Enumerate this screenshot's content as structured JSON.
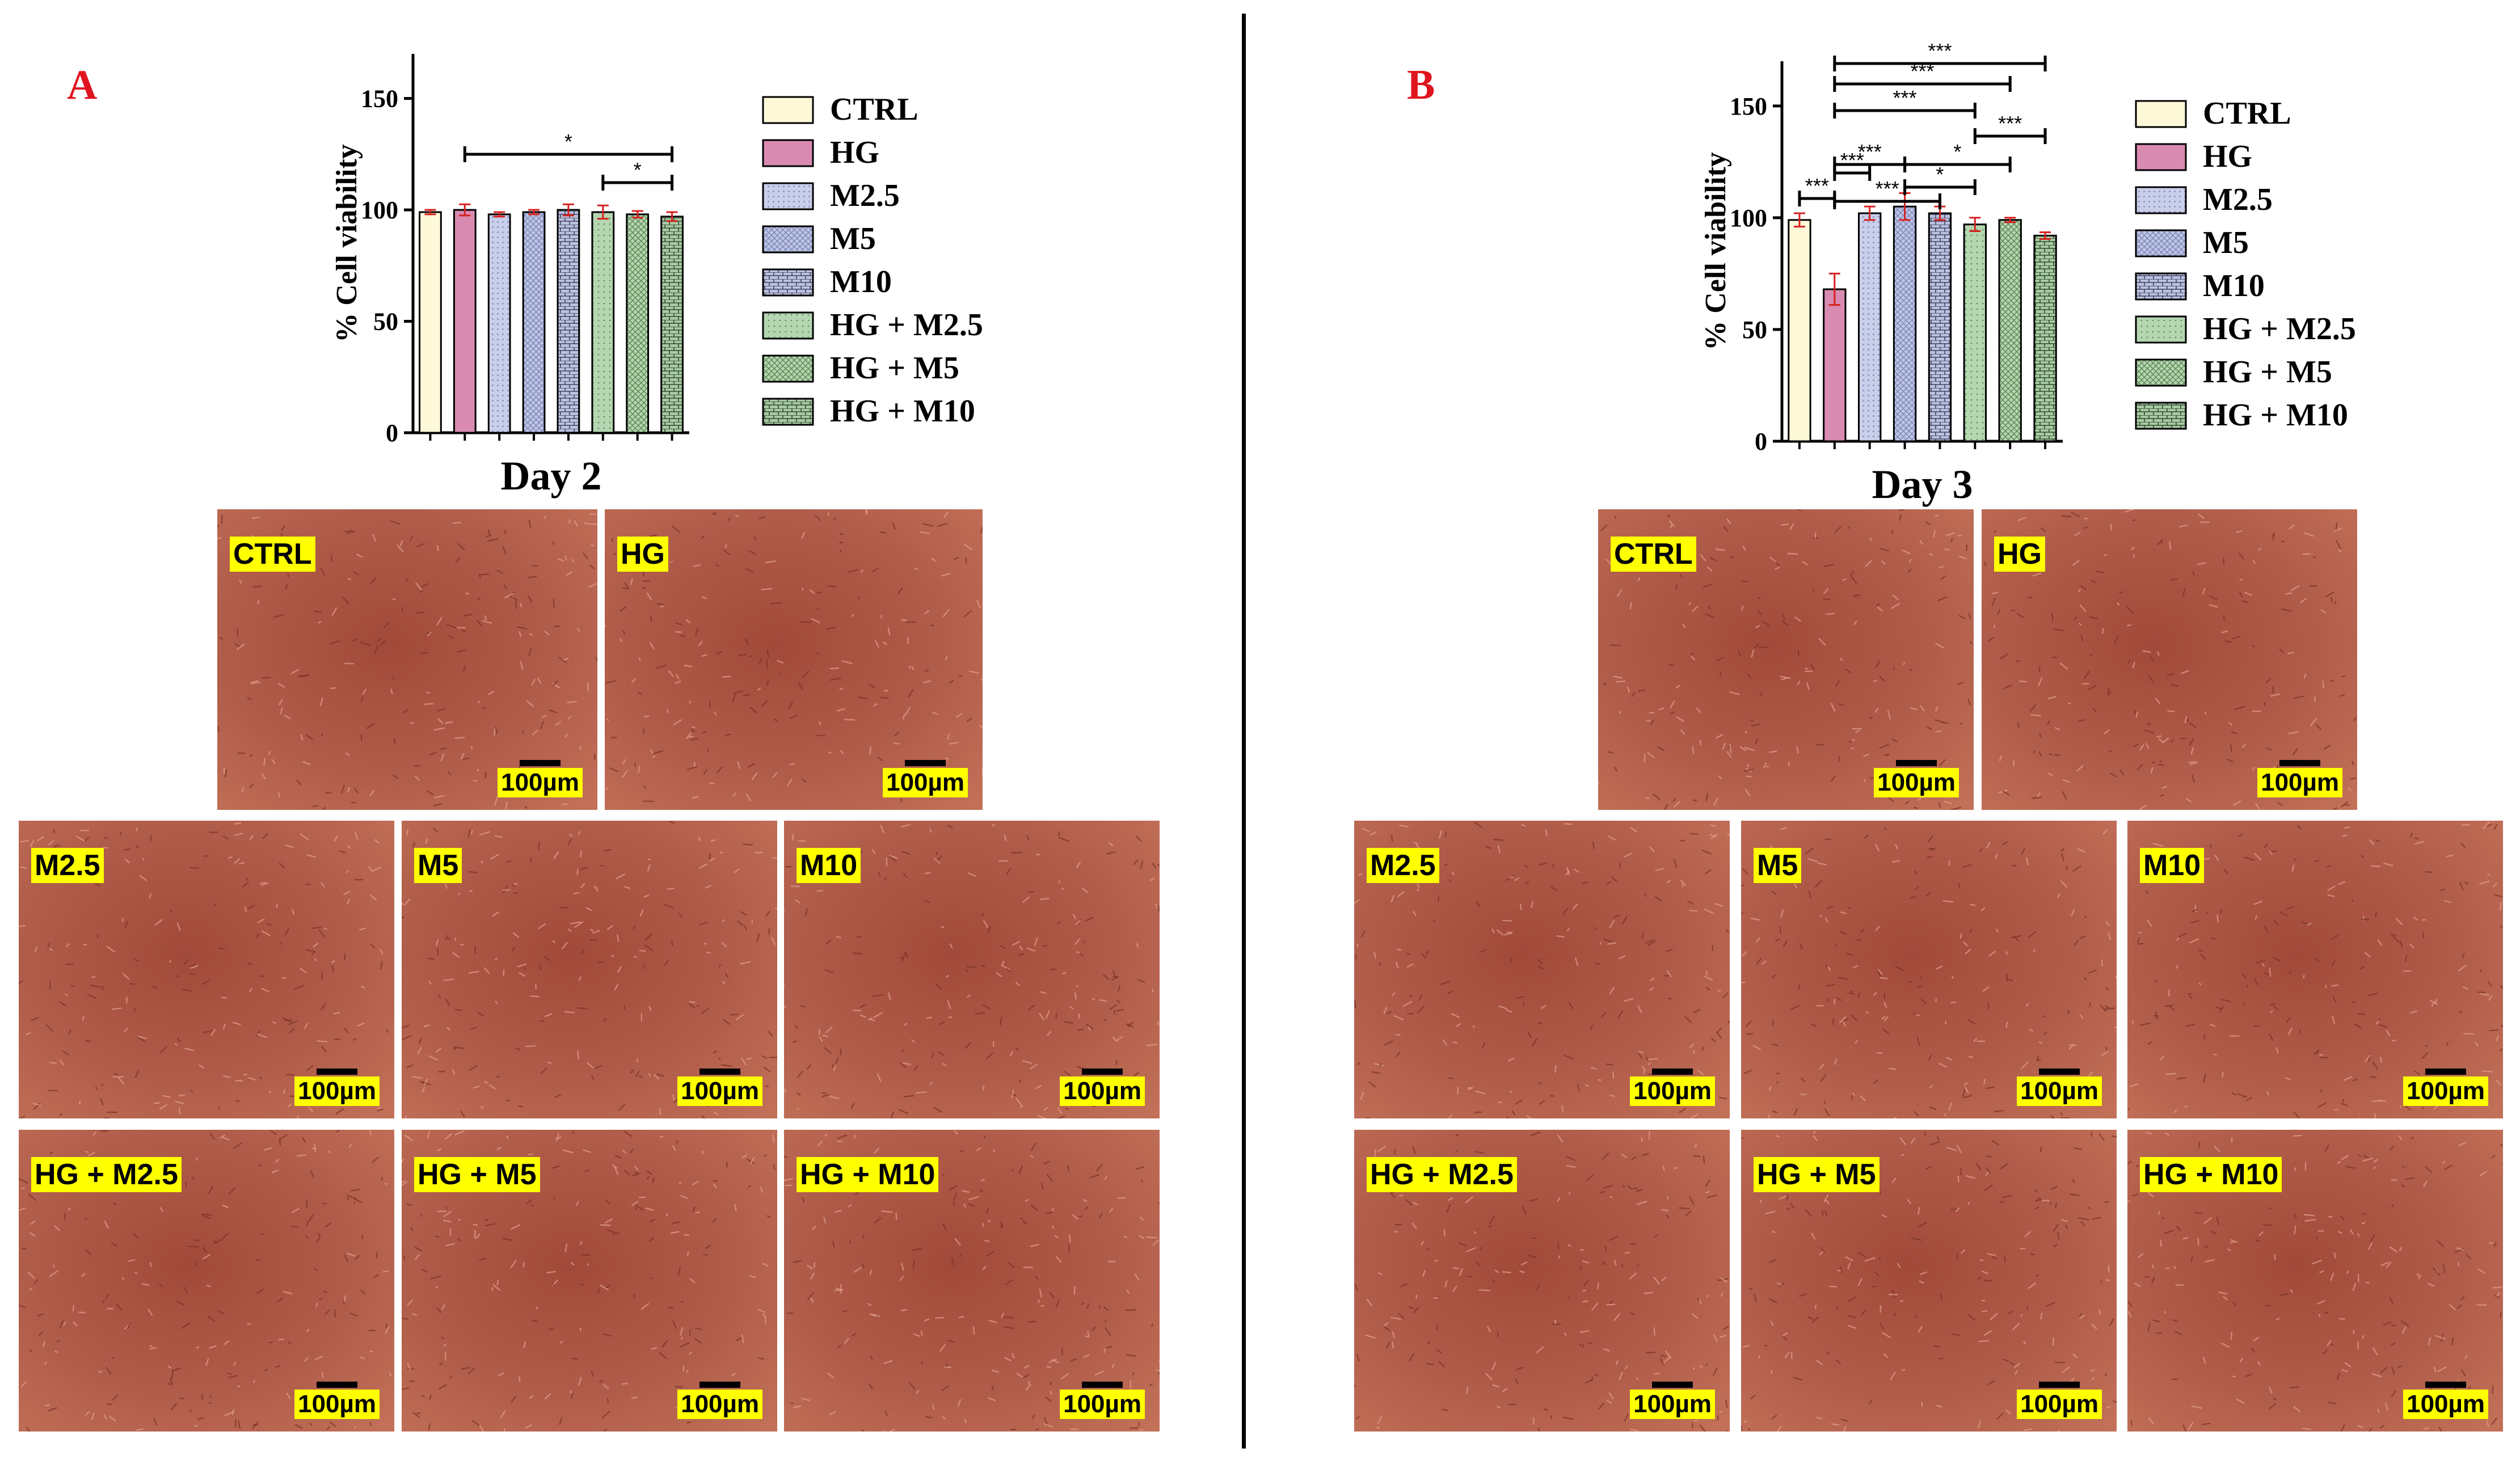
{
  "panels": {
    "a": {
      "letter": "A",
      "chart_title": "Day 2",
      "ylabel": "% Cell viability",
      "tiles": [
        {
          "label": "CTRL",
          "scale": "100µm"
        },
        {
          "label": "HG",
          "scale": "100µm"
        },
        {
          "label": "M2.5",
          "scale": "100µm"
        },
        {
          "label": "M5",
          "scale": "100µm"
        },
        {
          "label": "M10",
          "scale": "100µm"
        },
        {
          "label": "HG + M2.5",
          "scale": "100µm"
        },
        {
          "label": "HG + M5",
          "scale": "100µm"
        },
        {
          "label": "HG + M10",
          "scale": "100µm"
        }
      ]
    },
    "b": {
      "letter": "B",
      "chart_title": "Day 3",
      "ylabel": "% Cell viability",
      "tiles": [
        {
          "label": "CTRL",
          "scale": "100µm"
        },
        {
          "label": "HG",
          "scale": "100µm"
        },
        {
          "label": "M2.5",
          "scale": "100µm"
        },
        {
          "label": "M5",
          "scale": "100µm"
        },
        {
          "label": "M10",
          "scale": "100µm"
        },
        {
          "label": "HG + M2.5",
          "scale": "100µm"
        },
        {
          "label": "HG + M5",
          "scale": "100µm"
        },
        {
          "label": "HG + M10",
          "scale": "100µm"
        }
      ]
    }
  },
  "colors": {
    "CTRL": "#fdf8d8",
    "HG": "#d98ab0",
    "M2.5": "#c9cfea",
    "M5": "#bec5e6",
    "M10": "#bcc2dc",
    "HG + M2.5": "#b4d6b1",
    "HG + M5": "#b5d5ae",
    "HG + M10": "#a9c9a3",
    "error": "#d62020",
    "label_bg": "#ffff00",
    "letter": "#e0141e"
  },
  "chart_data": [
    {
      "type": "bar",
      "title": "Day 2",
      "xlabel": "",
      "ylabel": "% Cell viability",
      "ylim": [
        0,
        170
      ],
      "yticks": [
        0,
        50,
        100,
        150
      ],
      "categories": [
        "CTRL",
        "HG",
        "M2.5",
        "M5",
        "M10",
        "HG + M2.5",
        "HG + M5",
        "HG + M10"
      ],
      "values": [
        99,
        100,
        98,
        99,
        100,
        99,
        98,
        97
      ],
      "errors": [
        1,
        2.5,
        1,
        1,
        2.5,
        3,
        1.5,
        2
      ],
      "legend": [
        "CTRL",
        "HG",
        "M2.5",
        "M5",
        "M10",
        "HG + M2.5",
        "HG + M5",
        "HG + M10"
      ],
      "legend_position": "right",
      "significance": [
        {
          "from": "HG",
          "to": "HG + M10",
          "label": "*"
        },
        {
          "from": "HG + M2.5",
          "to": "HG + M10",
          "label": "*"
        }
      ]
    },
    {
      "type": "bar",
      "title": "Day 3",
      "xlabel": "",
      "ylabel": "% Cell viability",
      "ylim": [
        0,
        170
      ],
      "yticks": [
        0,
        50,
        100,
        150
      ],
      "categories": [
        "CTRL",
        "HG",
        "M2.5",
        "M5",
        "M10",
        "HG + M2.5",
        "HG + M5",
        "HG + M10"
      ],
      "values": [
        99,
        68,
        102,
        105,
        102,
        97,
        99,
        92
      ],
      "errors": [
        3,
        7,
        3,
        6,
        3,
        3,
        1,
        1.5
      ],
      "legend": [
        "CTRL",
        "HG",
        "M2.5",
        "M5",
        "M10",
        "HG + M2.5",
        "HG + M5",
        "HG + M10"
      ],
      "legend_position": "right",
      "significance": [
        {
          "from": "CTRL",
          "to": "HG",
          "label": "***"
        },
        {
          "from": "HG",
          "to": "M2.5",
          "label": "***"
        },
        {
          "from": "HG",
          "to": "M5",
          "label": "***"
        },
        {
          "from": "M5",
          "to": "HG + M5",
          "label": "*"
        },
        {
          "from": "M5",
          "to": "HG + M2.5",
          "label": "*"
        },
        {
          "from": "HG",
          "to": "M10",
          "label": "***"
        },
        {
          "from": "HG + M2.5",
          "to": "HG + M10",
          "label": "***"
        },
        {
          "from": "HG",
          "to": "HG + M2.5",
          "label": "***"
        },
        {
          "from": "HG",
          "to": "HG + M5",
          "label": "***"
        },
        {
          "from": "HG",
          "to": "HG + M10",
          "label": "***"
        }
      ]
    }
  ]
}
